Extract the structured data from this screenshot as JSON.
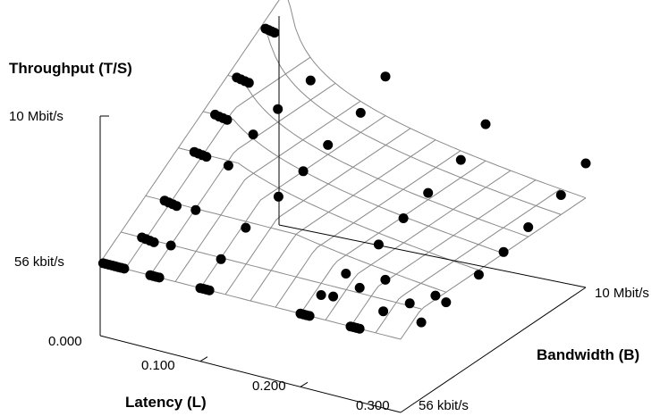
{
  "chart_data": {
    "type": "scatter",
    "subtype": "3d-surface-scatter",
    "zlabel": "Throughput (T/S)",
    "xlabel": "Latency (L)",
    "ylabel": "Bandwidth (B)",
    "x_ticks": [
      "0.000",
      "0.100",
      "0.200",
      "0.300"
    ],
    "y_ticks": [
      "56 kbit/s",
      "10 Mbit/s"
    ],
    "z_ticks": [
      "56 kbit/s",
      "10 Mbit/s"
    ],
    "xlim": [
      0,
      0.3
    ],
    "ylim_log": [
      0.056,
      10
    ],
    "zlim_log": [
      0.056,
      10
    ],
    "y_scale": "log",
    "z_scale": "log",
    "grid": true,
    "point_color": "#000000",
    "grid_color": "#8a8a8a",
    "surface_model": "T = min(B, W/L)",
    "grid_latencies": [
      0.0,
      0.025,
      0.05,
      0.075,
      0.1,
      0.125,
      0.15,
      0.175,
      0.2,
      0.225,
      0.25,
      0.275,
      0.3
    ],
    "grid_bandwidths": [
      0.056,
      0.1,
      0.2,
      0.5,
      1,
      2,
      5,
      10
    ],
    "points": [
      {
        "L": 0.002,
        "B": 10,
        "T": 10
      },
      {
        "L": 0.004,
        "B": 10,
        "T": 9.8
      },
      {
        "L": 0.006,
        "B": 10,
        "T": 9.6
      },
      {
        "L": 0.008,
        "B": 10,
        "T": 9.4
      },
      {
        "L": 0.005,
        "B": 5,
        "T": 5
      },
      {
        "L": 0.008,
        "B": 5,
        "T": 4.9
      },
      {
        "L": 0.011,
        "B": 5,
        "T": 4.8
      },
      {
        "L": 0.014,
        "B": 5,
        "T": 4.7
      },
      {
        "L": 0.009,
        "B": 2,
        "T": 2
      },
      {
        "L": 0.013,
        "B": 2,
        "T": 1.95
      },
      {
        "L": 0.017,
        "B": 2,
        "T": 1.9
      },
      {
        "L": 0.021,
        "B": 2,
        "T": 1.85
      },
      {
        "L": 0.012,
        "B": 1,
        "T": 1
      },
      {
        "L": 0.016,
        "B": 1,
        "T": 0.97
      },
      {
        "L": 0.02,
        "B": 1,
        "T": 0.95
      },
      {
        "L": 0.024,
        "B": 1,
        "T": 0.93
      },
      {
        "L": 0.016,
        "B": 0.5,
        "T": 0.5
      },
      {
        "L": 0.02,
        "B": 0.5,
        "T": 0.49
      },
      {
        "L": 0.024,
        "B": 0.5,
        "T": 0.48
      },
      {
        "L": 0.028,
        "B": 0.5,
        "T": 0.47
      },
      {
        "L": 0.019,
        "B": 0.2,
        "T": 0.2
      },
      {
        "L": 0.023,
        "B": 0.2,
        "T": 0.195
      },
      {
        "L": 0.027,
        "B": 0.2,
        "T": 0.19
      },
      {
        "L": 0.031,
        "B": 0.2,
        "T": 0.185
      },
      {
        "L": 0.021,
        "B": 0.1,
        "T": 0.1
      },
      {
        "L": 0.025,
        "B": 0.1,
        "T": 0.098
      },
      {
        "L": 0.029,
        "B": 0.1,
        "T": 0.096
      },
      {
        "L": 0.033,
        "B": 0.1,
        "T": 0.094
      },
      {
        "L": 0.003,
        "B": 0.056,
        "T": 0.056
      },
      {
        "L": 0.006,
        "B": 0.056,
        "T": 0.056
      },
      {
        "L": 0.009,
        "B": 0.056,
        "T": 0.056
      },
      {
        "L": 0.012,
        "B": 0.056,
        "T": 0.056
      },
      {
        "L": 0.015,
        "B": 0.056,
        "T": 0.056
      },
      {
        "L": 0.018,
        "B": 0.056,
        "T": 0.056
      },
      {
        "L": 0.021,
        "B": 0.056,
        "T": 0.056
      },
      {
        "L": 0.024,
        "B": 0.056,
        "T": 0.056
      },
      {
        "L": 0.05,
        "B": 0.056,
        "T": 0.056
      },
      {
        "L": 0.053,
        "B": 0.056,
        "T": 0.056
      },
      {
        "L": 0.056,
        "B": 0.056,
        "T": 0.056
      },
      {
        "L": 0.059,
        "B": 0.056,
        "T": 0.056
      },
      {
        "L": 0.1,
        "B": 0.056,
        "T": 0.056
      },
      {
        "L": 0.103,
        "B": 0.056,
        "T": 0.056
      },
      {
        "L": 0.106,
        "B": 0.056,
        "T": 0.056
      },
      {
        "L": 0.109,
        "B": 0.056,
        "T": 0.056
      },
      {
        "L": 0.05,
        "B": 5,
        "T": 1.2
      },
      {
        "L": 0.05,
        "B": 2,
        "T": 0.95
      },
      {
        "L": 0.05,
        "B": 1,
        "T": 0.7
      },
      {
        "L": 0.05,
        "B": 0.5,
        "T": 0.42
      },
      {
        "L": 0.05,
        "B": 0.2,
        "T": 0.19
      },
      {
        "L": 0.05,
        "B": 0.1,
        "T": 0.098
      },
      {
        "L": 0.1,
        "B": 10,
        "T": 1.2
      },
      {
        "L": 0.1,
        "B": 5,
        "T": 0.6
      },
      {
        "L": 0.1,
        "B": 2,
        "T": 0.42
      },
      {
        "L": 0.1,
        "B": 1,
        "T": 0.3
      },
      {
        "L": 0.1,
        "B": 0.5,
        "T": 0.22
      },
      {
        "L": 0.1,
        "B": 0.2,
        "T": 0.16
      },
      {
        "L": 0.1,
        "B": 0.1,
        "T": 0.095
      },
      {
        "L": 0.2,
        "B": 10,
        "T": 0.55
      },
      {
        "L": 0.2,
        "B": 5,
        "T": 0.28
      },
      {
        "L": 0.2,
        "B": 2,
        "T": 0.19
      },
      {
        "L": 0.2,
        "B": 1,
        "T": 0.14
      },
      {
        "L": 0.2,
        "B": 0.5,
        "T": 0.1
      },
      {
        "L": 0.2,
        "B": 0.2,
        "T": 0.078
      },
      {
        "L": 0.2,
        "B": 0.1,
        "T": 0.066
      },
      {
        "L": 0.3,
        "B": 10,
        "T": 0.34
      },
      {
        "L": 0.3,
        "B": 5,
        "T": 0.2
      },
      {
        "L": 0.3,
        "B": 2,
        "T": 0.14
      },
      {
        "L": 0.3,
        "B": 1,
        "T": 0.105
      },
      {
        "L": 0.3,
        "B": 0.5,
        "T": 0.085
      },
      {
        "L": 0.3,
        "B": 0.2,
        "T": 0.07
      },
      {
        "L": 0.3,
        "B": 0.1,
        "T": 0.062
      },
      {
        "L": 0.2,
        "B": 0.056,
        "T": 0.056
      },
      {
        "L": 0.203,
        "B": 0.056,
        "T": 0.056
      },
      {
        "L": 0.206,
        "B": 0.056,
        "T": 0.056
      },
      {
        "L": 0.209,
        "B": 0.056,
        "T": 0.056
      },
      {
        "L": 0.25,
        "B": 0.056,
        "T": 0.056
      },
      {
        "L": 0.253,
        "B": 0.056,
        "T": 0.056
      },
      {
        "L": 0.256,
        "B": 0.056,
        "T": 0.056
      },
      {
        "L": 0.259,
        "B": 0.056,
        "T": 0.056
      },
      {
        "L": 0.212,
        "B": 0.1,
        "T": 0.07
      },
      {
        "L": 0.224,
        "B": 0.15,
        "T": 0.075
      },
      {
        "L": 0.236,
        "B": 0.22,
        "T": 0.08
      },
      {
        "L": 0.262,
        "B": 0.1,
        "T": 0.065
      },
      {
        "L": 0.274,
        "B": 0.15,
        "T": 0.068
      },
      {
        "L": 0.286,
        "B": 0.22,
        "T": 0.072
      }
    ]
  }
}
